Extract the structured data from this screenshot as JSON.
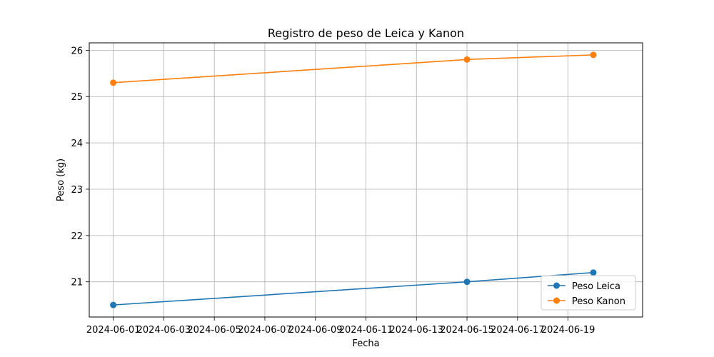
{
  "chart_data": {
    "type": "line",
    "title": "Registro de peso de Leica y Kanon",
    "xlabel": "Fecha",
    "ylabel": "Peso (kg)",
    "x_ticks": [
      "2024-06-01",
      "2024-06-03",
      "2024-06-05",
      "2024-06-07",
      "2024-06-09",
      "2024-06-11",
      "2024-06-13",
      "2024-06-15",
      "2024-06-17",
      "2024-06-19"
    ],
    "y_ticks": [
      21,
      22,
      23,
      24,
      25,
      26
    ],
    "xlim": [
      "2024-05-31T01:12",
      "2024-06-21T22:48"
    ],
    "ylim": [
      20.24,
      26.16
    ],
    "grid": true,
    "legend_position": "lower-right",
    "series": [
      {
        "name": "Peso Leica",
        "color": "#1f77b4",
        "x": [
          "2024-06-01",
          "2024-06-15",
          "2024-06-20"
        ],
        "values": [
          20.5,
          21.0,
          21.2
        ]
      },
      {
        "name": "Peso Kanon",
        "color": "#ff7f0e",
        "x": [
          "2024-06-01",
          "2024-06-15",
          "2024-06-20"
        ],
        "values": [
          25.3,
          25.8,
          25.9
        ]
      }
    ]
  }
}
